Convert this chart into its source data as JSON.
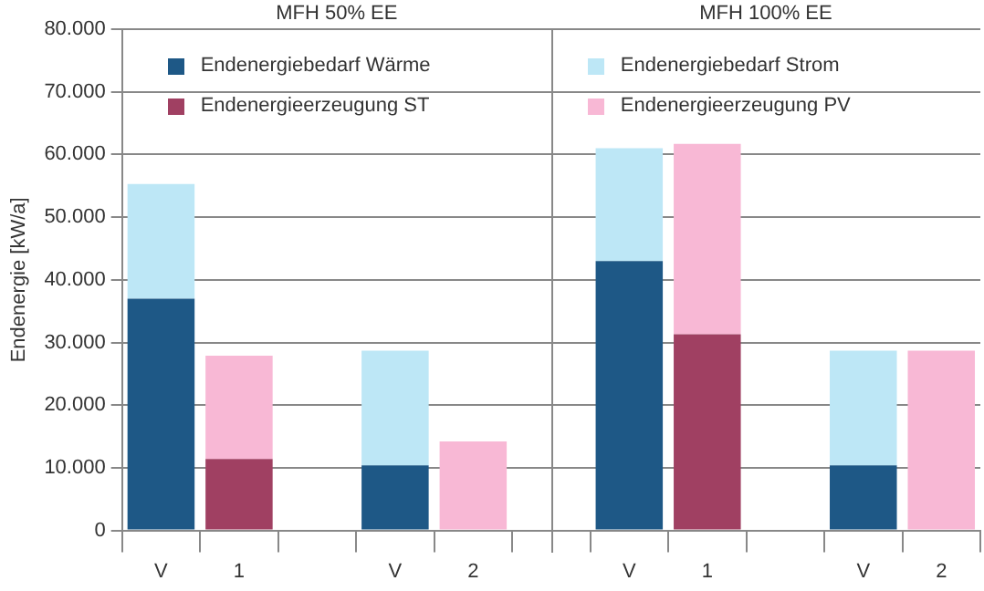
{
  "chart_data": {
    "type": "bar",
    "stacked": true,
    "ylabel": "Endenergie [kW/a]",
    "annotations": [
      "MFH 50% EE",
      "MFH 100% EE"
    ],
    "categories": [
      "V",
      "1",
      null,
      "V",
      "2",
      null,
      "V",
      "1",
      null,
      "V",
      "2"
    ],
    "series": [
      {
        "name": "Endenergiebedarf Wärme",
        "color": "#1e5886",
        "values": [
          37000,
          null,
          null,
          10400,
          null,
          null,
          43000,
          null,
          null,
          10400,
          null
        ]
      },
      {
        "name": "Endenergieerzeugung ST",
        "color": "#a04062",
        "values": [
          null,
          11400,
          null,
          null,
          null,
          null,
          null,
          31300,
          null,
          null,
          null
        ]
      },
      {
        "name": "Endenergiebedarf Strom",
        "color": "#bde7f6",
        "values": [
          18300,
          null,
          null,
          18300,
          null,
          null,
          18000,
          null,
          null,
          18300,
          null
        ]
      },
      {
        "name": "Endenergieerzeugung PV",
        "color": "#f8b8d5",
        "values": [
          null,
          16500,
          null,
          null,
          14200,
          null,
          null,
          30400,
          null,
          null,
          28700
        ]
      }
    ],
    "ylim": [
      0,
      80000
    ],
    "yticks": [
      {
        "value": 0,
        "label": "0"
      },
      {
        "value": 10000,
        "label": "10.000"
      },
      {
        "value": 20000,
        "label": "20.000"
      },
      {
        "value": 30000,
        "label": "30.000"
      },
      {
        "value": 40000,
        "label": "40.000"
      },
      {
        "value": 50000,
        "label": "50.000"
      },
      {
        "value": 60000,
        "label": "60.000"
      },
      {
        "value": 70000,
        "label": "70.000"
      },
      {
        "value": 80000,
        "label": "80.000"
      }
    ],
    "grid": "y",
    "legend": "top"
  }
}
